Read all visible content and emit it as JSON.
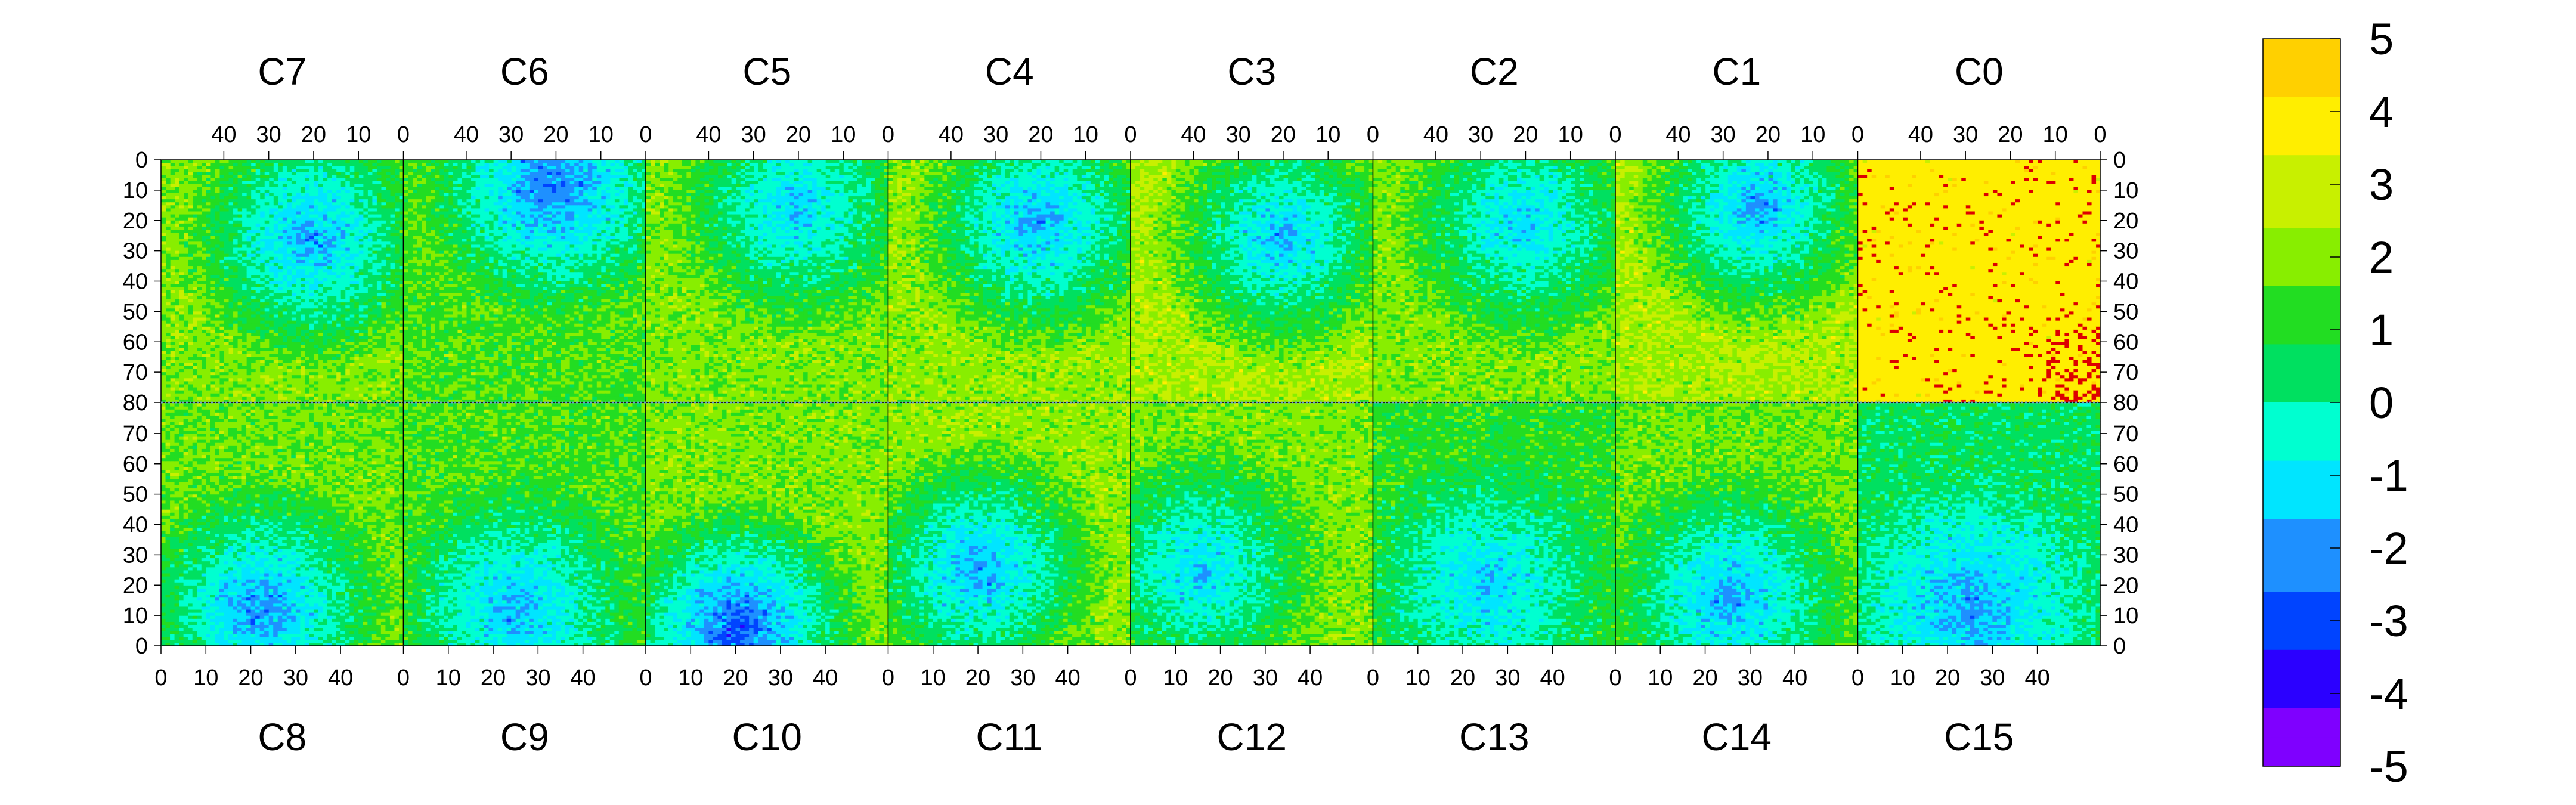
{
  "chart_data": {
    "type": "heatmap",
    "title": "",
    "top_panels": [
      "C7",
      "C6",
      "C5",
      "C4",
      "C3",
      "C2",
      "C1",
      "C0"
    ],
    "bottom_panels": [
      "C8",
      "C9",
      "C10",
      "C11",
      "C12",
      "C13",
      "C14",
      "C15"
    ],
    "x_range": [
      0,
      54
    ],
    "x_ticks": [
      0,
      10,
      20,
      30,
      40
    ],
    "x_tick_labels": [
      "0",
      "10",
      "20",
      "30",
      "40"
    ],
    "top_x_reversed": true,
    "y_range": [
      0,
      80
    ],
    "top_y_ticks": [
      0,
      10,
      20,
      30,
      40,
      50,
      60,
      70,
      80
    ],
    "top_y_labels": [
      "0",
      "10",
      "20",
      "30",
      "40",
      "50",
      "60",
      "70",
      "80"
    ],
    "top_y_reversed": true,
    "bottom_y_ticks": [
      0,
      10,
      20,
      30,
      40,
      50,
      60,
      70
    ],
    "bottom_y_labels": [
      "0",
      "10",
      "20",
      "30",
      "40",
      "50",
      "60",
      "70"
    ],
    "z_range": [
      -5,
      5
    ],
    "colorbar_ticks": [
      5,
      4,
      3,
      2,
      1,
      0,
      -1,
      -2,
      -3,
      -4,
      -5
    ],
    "colorbar_labels": [
      "5",
      "4",
      "3",
      "2",
      "1",
      "0",
      "-1",
      "-2",
      "-3",
      "-4",
      "-5"
    ],
    "colormap": [
      "#7f00ff",
      "#2b00ff",
      "#0044ff",
      "#1e90ff",
      "#00e5ff",
      "#00ffd0",
      "#00e060",
      "#22dd22",
      "#88ee00",
      "#c8f000",
      "#ffee00",
      "#ffd000"
    ],
    "overflow_color": "#dd0000",
    "description_values": {
      "mean_level_c0_panel": 3.8,
      "typical_level_other_panels": 0.3,
      "low_region_level": -2.5
    },
    "panel_trends": {
      "C7": {
        "cx": 20,
        "cy": 25,
        "low": -2.0,
        "high": 2.0
      },
      "C6": {
        "cx": 20,
        "cy": 8,
        "low": -2.5,
        "high": 1.5
      },
      "C5": {
        "cx": 20,
        "cy": 15,
        "low": -1.5,
        "high": 2.0
      },
      "C4": {
        "cx": 20,
        "cy": 20,
        "low": -2.0,
        "high": 2.2
      },
      "C3": {
        "cx": 20,
        "cy": 25,
        "low": -1.8,
        "high": 2.5
      },
      "C2": {
        "cx": 20,
        "cy": 20,
        "low": -1.5,
        "high": 2.0
      },
      "C1": {
        "cx": 22,
        "cy": 15,
        "low": -2.0,
        "high": 2.5
      },
      "C8": {
        "cx": 22,
        "cy": 12,
        "low": -2.2,
        "high": 1.8
      },
      "C9": {
        "cx": 25,
        "cy": 12,
        "low": -1.8,
        "high": 1.5
      },
      "C10": {
        "cx": 20,
        "cy": 5,
        "low": -3.0,
        "high": 2.0
      },
      "C11": {
        "cx": 20,
        "cy": 25,
        "low": -2.0,
        "high": 2.2
      },
      "C12": {
        "cx": 15,
        "cy": 25,
        "low": -1.5,
        "high": 2.0
      },
      "C13": {
        "cx": 25,
        "cy": 20,
        "low": -1.5,
        "high": 1.2
      },
      "C14": {
        "cx": 25,
        "cy": 15,
        "low": -2.0,
        "high": 1.8
      },
      "C15": {
        "cx": 25,
        "cy": 12,
        "low": -2.0,
        "high": 0.5
      }
    }
  }
}
